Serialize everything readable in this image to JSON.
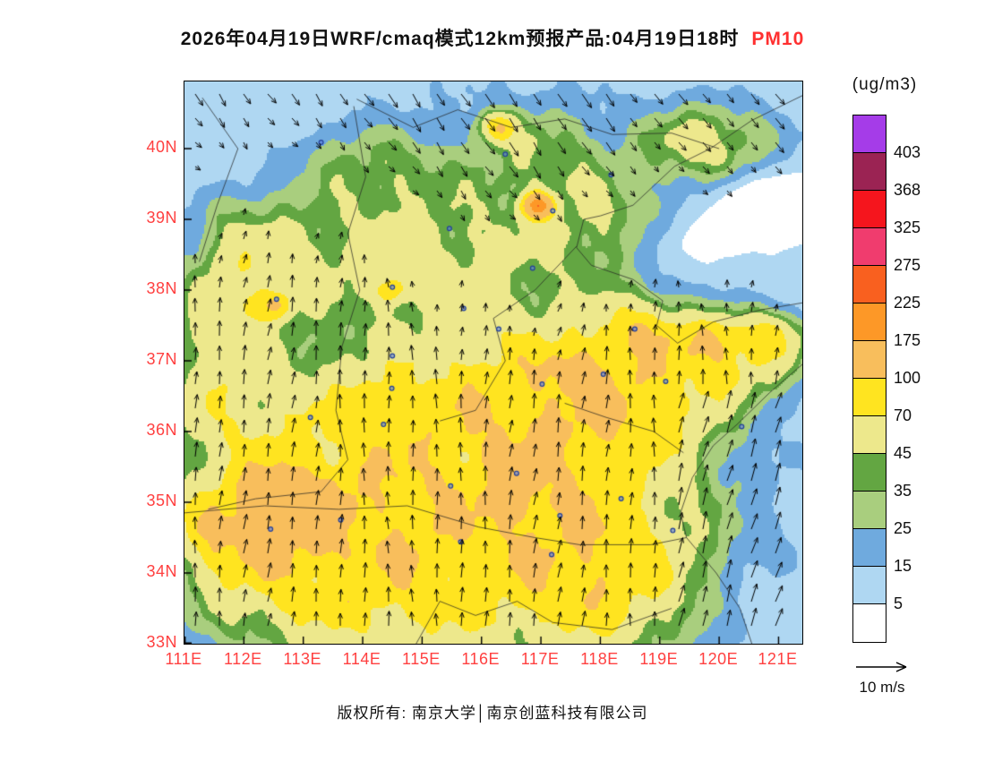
{
  "theme": {
    "background": "#FFFFFF",
    "axis_label_color": "#FF4040",
    "title_accent_color": "#FF3030",
    "text_color": "#111111",
    "frame_color": "#000000"
  },
  "title": {
    "text": "2026年04月19日WRF/cmaq模式12km预报产品:04月19日18时",
    "species": "PM10"
  },
  "colorbar": {
    "units_label": "(ug/m3)",
    "labels_top_to_bottom": [
      "403",
      "368",
      "325",
      "275",
      "225",
      "175",
      "100",
      "70",
      "45",
      "35",
      "25",
      "15",
      "5"
    ],
    "colors_top_to_bottom": [
      "#A53CE8",
      "#9B2353",
      "#F5151D",
      "#F03C6E",
      "#F9601F",
      "#FD9827",
      "#F8BE5C",
      "#FFE420",
      "#EDE88C",
      "#63A642",
      "#A9CE7E",
      "#6FAADE",
      "#AFD7F2",
      "#FFFFFF"
    ]
  },
  "wind_legend": {
    "label": "10 m/s"
  },
  "footer": {
    "copyright_text": "版权所有: 南京大学│南京创蓝科技有限公司"
  },
  "chart_data": {
    "type": "heatmap",
    "variable": "PM10",
    "units": "ug/m3",
    "model": "WRF/cmaq 12km",
    "forecast_issue_date": "2026年04月19日",
    "valid_time": "04月19日18时",
    "lon_range": [
      111.0,
      121.4
    ],
    "lat_range": [
      33.0,
      40.95
    ],
    "x_tick_labels": [
      "111E",
      "112E",
      "113E",
      "114E",
      "115E",
      "116E",
      "117E",
      "118E",
      "119E",
      "120E",
      "121E"
    ],
    "y_tick_labels_top_to_bottom": [
      "40N",
      "39N",
      "38N",
      "37N",
      "36N",
      "35N",
      "34N",
      "33N"
    ],
    "contour_levels": [
      5,
      15,
      25,
      35,
      45,
      70,
      100,
      175,
      225,
      275,
      325,
      368,
      403
    ],
    "level_colors_low_to_high": [
      "#FFFFFF",
      "#AFD7F2",
      "#6FAADE",
      "#A9CE7E",
      "#63A642",
      "#EDE88C",
      "#FFE420",
      "#F8BE5C",
      "#FD9827",
      "#F9601F",
      "#F03C6E",
      "#F5151D",
      "#9B2353",
      "#A53CE8"
    ],
    "wind_vector_scale_ms": 10,
    "field_model": {
      "background": 2,
      "ripple": [
        0.16,
        0.1,
        0.07
      ],
      "blobs": [
        [
          112.0,
          40.0,
          3.5,
          2.0,
          9
        ],
        [
          117.0,
          41.0,
          5.0,
          1.5,
          8
        ],
        [
          121.5,
          34.5,
          2.5,
          3.5,
          9
        ],
        [
          120.5,
          39.5,
          3.0,
          1.2,
          8
        ],
        [
          114.3,
          34.6,
          2.6,
          1.5,
          55
        ],
        [
          116.8,
          35.2,
          2.4,
          1.5,
          52
        ],
        [
          113.2,
          36.0,
          1.8,
          1.3,
          40
        ],
        [
          115.8,
          36.8,
          2.2,
          1.3,
          42
        ],
        [
          117.9,
          36.6,
          1.8,
          1.2,
          45
        ],
        [
          112.3,
          34.2,
          1.6,
          1.2,
          45
        ],
        [
          118.3,
          34.3,
          1.7,
          1.2,
          42
        ],
        [
          114.8,
          33.4,
          2.2,
          0.9,
          36
        ],
        [
          117.9,
          33.5,
          1.6,
          0.9,
          36
        ],
        [
          111.4,
          36.6,
          1.0,
          1.2,
          40
        ],
        [
          111.6,
          34.6,
          0.7,
          0.6,
          45
        ],
        [
          115.3,
          38.6,
          2.3,
          0.9,
          38
        ],
        [
          118.2,
          38.9,
          1.4,
          0.7,
          30
        ],
        [
          112.6,
          38.4,
          1.4,
          0.9,
          32
        ],
        [
          117.0,
          39.9,
          1.2,
          0.7,
          30
        ],
        [
          119.8,
          40.1,
          1.0,
          0.5,
          45
        ],
        [
          114.6,
          39.6,
          1.0,
          0.6,
          22
        ],
        [
          111.8,
          37.8,
          0.8,
          0.8,
          25
        ],
        [
          119.0,
          36.5,
          1.2,
          0.8,
          40
        ],
        [
          120.4,
          37.1,
          1.0,
          0.55,
          60
        ],
        [
          120.9,
          37.4,
          0.6,
          0.3,
          30
        ],
        [
          113.6,
          39.9,
          0.9,
          0.5,
          12
        ],
        [
          111.8,
          38.9,
          0.6,
          0.9,
          10
        ],
        [
          112.9,
          34.8,
          0.75,
          0.5,
          45
        ],
        [
          118.7,
          37.45,
          0.8,
          0.45,
          48
        ],
        [
          117.5,
          36.9,
          0.45,
          0.3,
          40
        ],
        [
          116.6,
          35.05,
          0.4,
          0.28,
          38
        ],
        [
          114.4,
          36.5,
          0.38,
          0.28,
          36
        ],
        [
          112.4,
          35.2,
          0.5,
          0.35,
          35
        ],
        [
          119.9,
          37.3,
          0.5,
          0.3,
          40
        ],
        [
          116.95,
          39.2,
          0.22,
          0.16,
          185
        ],
        [
          116.25,
          40.3,
          0.3,
          0.2,
          70
        ],
        [
          114.5,
          38.0,
          0.3,
          0.2,
          55
        ],
        [
          112.5,
          37.8,
          0.28,
          0.2,
          75
        ],
        [
          119.2,
          38.7,
          0.9,
          0.5,
          -20
        ],
        [
          120.8,
          39.2,
          1.0,
          0.5,
          -25
        ],
        [
          120.4,
          33.7,
          0.7,
          0.5,
          -8
        ],
        [
          111.6,
          39.8,
          0.8,
          0.6,
          -10
        ],
        [
          112.8,
          40.5,
          0.7,
          0.5,
          -9
        ]
      ]
    },
    "cities_lon_lat": [
      [
        116.4,
        39.92
      ],
      [
        117.2,
        39.12
      ],
      [
        114.5,
        38.04
      ],
      [
        112.55,
        37.87
      ],
      [
        117.02,
        36.67
      ],
      [
        113.63,
        34.75
      ],
      [
        120.38,
        36.07
      ],
      [
        117.18,
        34.26
      ],
      [
        114.49,
        36.61
      ],
      [
        112.45,
        34.62
      ],
      [
        119.1,
        36.71
      ],
      [
        115.46,
        38.87
      ],
      [
        116.86,
        38.31
      ],
      [
        116.29,
        37.45
      ],
      [
        115.48,
        35.23
      ],
      [
        116.59,
        35.41
      ],
      [
        118.05,
        36.81
      ],
      [
        118.58,
        37.45
      ],
      [
        118.35,
        35.05
      ],
      [
        119.22,
        34.6
      ],
      [
        113.12,
        36.2
      ],
      [
        113.3,
        40.09
      ],
      [
        118.18,
        39.63
      ],
      [
        115.7,
        37.74
      ],
      [
        114.5,
        37.07
      ],
      [
        114.35,
        36.1
      ],
      [
        115.65,
        34.44
      ],
      [
        117.32,
        34.81
      ]
    ],
    "geo_lines": [
      [
        [
          121.4,
          40.75
        ],
        [
          120.55,
          40.4
        ],
        [
          119.85,
          40.0
        ],
        [
          119.25,
          39.75
        ],
        [
          118.55,
          39.2
        ],
        [
          118.0,
          39.05
        ],
        [
          117.72,
          39.0
        ],
        [
          117.6,
          38.6
        ],
        [
          117.85,
          38.35
        ],
        [
          118.55,
          38.15
        ],
        [
          119.05,
          37.85
        ],
        [
          118.95,
          37.5
        ],
        [
          119.3,
          37.25
        ],
        [
          119.9,
          37.55
        ],
        [
          120.7,
          37.72
        ],
        [
          121.4,
          37.82
        ]
      ],
      [
        [
          121.4,
          36.95
        ],
        [
          120.85,
          36.55
        ],
        [
          120.3,
          36.1
        ],
        [
          119.9,
          35.8
        ],
        [
          119.55,
          35.35
        ],
        [
          119.35,
          34.85
        ],
        [
          119.45,
          34.5
        ],
        [
          119.95,
          34.0
        ],
        [
          120.35,
          33.5
        ],
        [
          120.55,
          33.0
        ]
      ],
      [
        [
          113.85,
          40.6
        ],
        [
          114.05,
          39.6
        ],
        [
          113.75,
          38.8
        ],
        [
          113.95,
          38.0
        ],
        [
          113.65,
          37.2
        ],
        [
          113.55,
          36.3
        ],
        [
          113.75,
          35.6
        ],
        [
          113.3,
          35.15
        ],
        [
          112.2,
          35.05
        ],
        [
          111.4,
          34.9
        ]
      ],
      [
        [
          111.0,
          34.85
        ],
        [
          112.35,
          34.95
        ],
        [
          113.6,
          34.9
        ],
        [
          114.75,
          34.95
        ],
        [
          115.95,
          34.65
        ],
        [
          116.9,
          34.5
        ],
        [
          117.65,
          34.4
        ],
        [
          118.85,
          34.4
        ],
        [
          119.45,
          34.5
        ]
      ],
      [
        [
          115.3,
          36.15
        ],
        [
          115.9,
          36.3
        ],
        [
          116.4,
          37.0
        ],
        [
          116.2,
          37.6
        ],
        [
          116.9,
          38.0
        ],
        [
          117.6,
          38.62
        ]
      ],
      [
        [
          113.9,
          40.7
        ],
        [
          114.85,
          40.3
        ],
        [
          115.6,
          40.55
        ],
        [
          116.5,
          40.3
        ],
        [
          117.4,
          40.42
        ],
        [
          118.2,
          40.2
        ],
        [
          119.2,
          40.22
        ],
        [
          120.0,
          40.0
        ]
      ],
      [
        [
          114.9,
          33.0
        ],
        [
          115.3,
          33.6
        ],
        [
          115.9,
          33.4
        ],
        [
          116.6,
          33.6
        ],
        [
          117.2,
          33.3
        ],
        [
          118.2,
          33.2
        ],
        [
          119.2,
          33.5
        ]
      ],
      [
        [
          111.3,
          40.72
        ],
        [
          111.9,
          40.0
        ],
        [
          111.55,
          39.2
        ],
        [
          111.25,
          38.4
        ]
      ],
      [
        [
          117.4,
          36.4
        ],
        [
          118.1,
          36.2
        ],
        [
          118.9,
          36.0
        ],
        [
          119.4,
          35.7
        ]
      ]
    ],
    "wind_model": {
      "front_lat_at_116e": 38.8,
      "front_slope_per_deg_lon": -0.1,
      "front_wiggle_deg": 0.35,
      "north_side_u": [
        1.0,
        2.2
      ],
      "north_side_v": [
        -0.4,
        -4.4
      ],
      "south_side_v": [
        1.0,
        4.2
      ],
      "sea_extra_uv": [
        1.8,
        1.2
      ]
    }
  }
}
